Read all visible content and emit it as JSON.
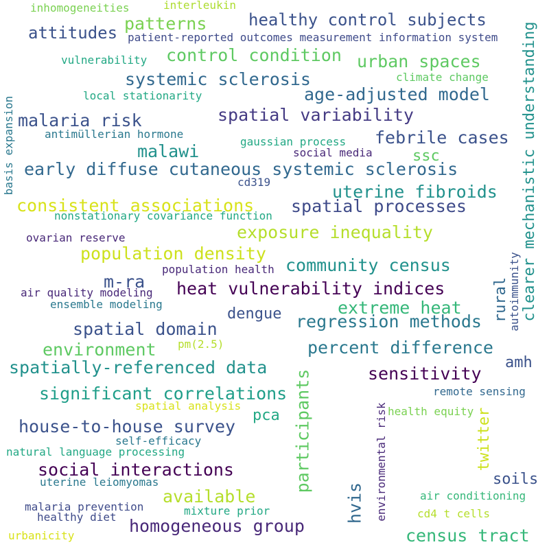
{
  "colors": {
    "background": "#ffffff",
    "palette": [
      "#440154",
      "#3b528b",
      "#21908d",
      "#5dc863",
      "#fde725"
    ]
  },
  "words": [
    {
      "text": "inhomogeneities",
      "color": "#7ad151"
    },
    {
      "text": "interleukin",
      "color": "#addc30"
    },
    {
      "text": "healthy control subjects",
      "color": "#3b528b"
    },
    {
      "text": "patterns",
      "color": "#7ad151"
    },
    {
      "text": "attitudes",
      "color": "#3b528b"
    },
    {
      "text": "patient-reported outcomes measurement information system",
      "color": "#3e4a89"
    },
    {
      "text": "clearer mechanistic understanding",
      "color": "#21918c"
    },
    {
      "text": "control condition",
      "color": "#5ec962"
    },
    {
      "text": "urban spaces",
      "color": "#5ec962"
    },
    {
      "text": "vulnerability",
      "color": "#22a884"
    },
    {
      "text": "climate change",
      "color": "#5ec962"
    },
    {
      "text": "systemic sclerosis",
      "color": "#31688e"
    },
    {
      "text": "local stationarity",
      "color": "#22a884"
    },
    {
      "text": "age-adjusted model",
      "color": "#31688e"
    },
    {
      "text": "basis expansion",
      "color": "#2a788e"
    },
    {
      "text": "malaria risk",
      "color": "#3b528b"
    },
    {
      "text": "spatial variability",
      "color": "#443a83"
    },
    {
      "text": "antimüllerian hormone",
      "color": "#2a788e"
    },
    {
      "text": "febrile cases",
      "color": "#3b528b"
    },
    {
      "text": "malawi",
      "color": "#21918c"
    },
    {
      "text": "gaussian process",
      "color": "#22a884"
    },
    {
      "text": "ssc",
      "color": "#5ec962"
    },
    {
      "text": "social media",
      "color": "#482878"
    },
    {
      "text": "early diffuse cutaneous systemic sclerosis",
      "color": "#31688e"
    },
    {
      "text": "cd319",
      "color": "#3b528b"
    },
    {
      "text": "uterine fibroids",
      "color": "#21918c"
    },
    {
      "text": "consistent associations",
      "color": "#d8e219"
    },
    {
      "text": "spatial processes",
      "color": "#3e4a89"
    },
    {
      "text": "nonstationary covariance function",
      "color": "#22a884"
    },
    {
      "text": "exposure inequality",
      "color": "#b5de2b"
    },
    {
      "text": "ovarian reserve",
      "color": "#482878"
    },
    {
      "text": "population density",
      "color": "#cde11d"
    },
    {
      "text": "autoimmunity",
      "color": "#3b528b"
    },
    {
      "text": "community census",
      "color": "#21918c"
    },
    {
      "text": "population health",
      "color": "#482878"
    },
    {
      "text": "m-ra",
      "color": "#3b528b"
    },
    {
      "text": "rural",
      "color": "#31688e"
    },
    {
      "text": "heat vulnerability indices",
      "color": "#440154"
    },
    {
      "text": "air quality modeling",
      "color": "#482878"
    },
    {
      "text": "extreme heat",
      "color": "#35b779"
    },
    {
      "text": "ensemble modeling",
      "color": "#2a788e"
    },
    {
      "text": "dengue",
      "color": "#3b528b"
    },
    {
      "text": "regression methods",
      "color": "#2a788e"
    },
    {
      "text": "spatial domain",
      "color": "#3b528b"
    },
    {
      "text": "environment",
      "color": "#5ec962"
    },
    {
      "text": "pm(2.5)",
      "color": "#b5de2b"
    },
    {
      "text": "percent difference",
      "color": "#2a788e"
    },
    {
      "text": "amh",
      "color": "#3b528b"
    },
    {
      "text": "spatially-referenced data",
      "color": "#21918c"
    },
    {
      "text": "participants",
      "color": "#5ec962"
    },
    {
      "text": "sensitivity",
      "color": "#440154"
    },
    {
      "text": "significant correlations",
      "color": "#1f9e89"
    },
    {
      "text": "remote sensing",
      "color": "#31688e"
    },
    {
      "text": "environmental risk",
      "color": "#482878"
    },
    {
      "text": "spatial analysis",
      "color": "#d8e219"
    },
    {
      "text": "pca",
      "color": "#22a884"
    },
    {
      "text": "twitter",
      "color": "#cde11d"
    },
    {
      "text": "health equity",
      "color": "#7ad151"
    },
    {
      "text": "house-to-house survey",
      "color": "#3b528b"
    },
    {
      "text": "self-efficacy",
      "color": "#2a788e"
    },
    {
      "text": "natural language processing",
      "color": "#22a884"
    },
    {
      "text": "social interactions",
      "color": "#440154"
    },
    {
      "text": "soils",
      "color": "#3b528b"
    },
    {
      "text": "uterine leiomyomas",
      "color": "#2a788e"
    },
    {
      "text": "available",
      "color": "#b5de2b"
    },
    {
      "text": "air conditioning",
      "color": "#35b779"
    },
    {
      "text": "hvis",
      "color": "#31688e"
    },
    {
      "text": "malaria prevention",
      "color": "#3e4a89"
    },
    {
      "text": "mixture prior",
      "color": "#22a884"
    },
    {
      "text": "cd4 t cells",
      "color": "#b5de2b"
    },
    {
      "text": "healthy diet",
      "color": "#3e4a89"
    },
    {
      "text": "homogeneous group",
      "color": "#482878"
    },
    {
      "text": "census tract",
      "color": "#35b779"
    },
    {
      "text": "urbanicity",
      "color": "#d8e219"
    }
  ]
}
